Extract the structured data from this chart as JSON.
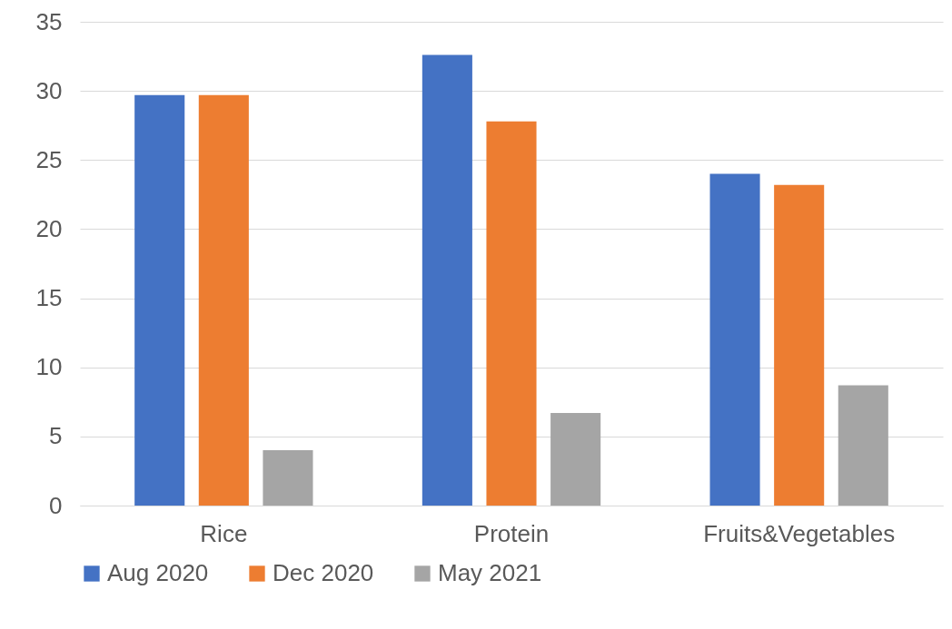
{
  "chart_data": {
    "type": "bar",
    "categories": [
      "Rice",
      "Protein",
      "Fruits&Vegetables"
    ],
    "series": [
      {
        "name": "Aug 2020",
        "color": "#4472c4",
        "values": [
          29.7,
          32.6,
          24.0
        ]
      },
      {
        "name": "Dec 2020",
        "color": "#ed7d31",
        "values": [
          29.7,
          27.8,
          23.2
        ]
      },
      {
        "name": "May 2021",
        "color": "#a5a5a5",
        "values": [
          4.0,
          6.7,
          8.7
        ]
      }
    ],
    "ylim": [
      0,
      35
    ],
    "yticks": [
      0,
      5,
      10,
      15,
      20,
      25,
      30,
      35
    ],
    "grid": "y",
    "legend": "bottom"
  }
}
